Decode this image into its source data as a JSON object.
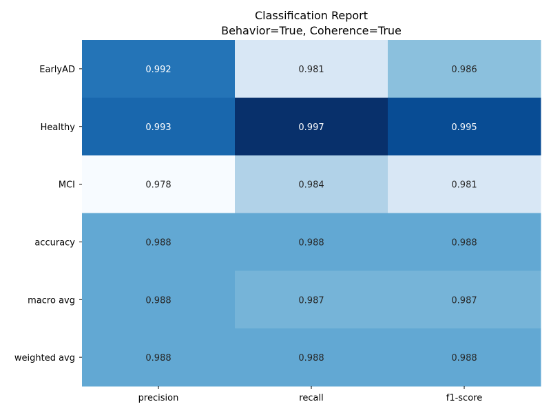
{
  "chart_data": {
    "type": "heatmap",
    "title": "Classification Report",
    "subtitle": "Behavior=True, Coherence=True",
    "xlabel": "",
    "ylabel": "",
    "columns": [
      "precision",
      "recall",
      "f1-score"
    ],
    "rows": [
      "EarlyAD",
      "Healthy",
      "MCI",
      "accuracy",
      "macro avg",
      "weighted avg"
    ],
    "values": [
      [
        0.992,
        0.981,
        0.986
      ],
      [
        0.993,
        0.997,
        0.995
      ],
      [
        0.978,
        0.984,
        0.981
      ],
      [
        0.988,
        0.988,
        0.988
      ],
      [
        0.988,
        0.987,
        0.987
      ],
      [
        0.988,
        0.988,
        0.988
      ]
    ],
    "display_values": [
      [
        "0.992",
        "0.981",
        "0.986"
      ],
      [
        "0.993",
        "0.997",
        "0.995"
      ],
      [
        "0.978",
        "0.984",
        "0.981"
      ],
      [
        "0.988",
        "0.988",
        "0.988"
      ],
      [
        "0.988",
        "0.987",
        "0.987"
      ],
      [
        "0.988",
        "0.988",
        "0.988"
      ]
    ],
    "colormap": "Blues",
    "color_range": [
      0.978,
      0.997
    ],
    "colorbar": false,
    "grid": false,
    "legend": "none"
  }
}
